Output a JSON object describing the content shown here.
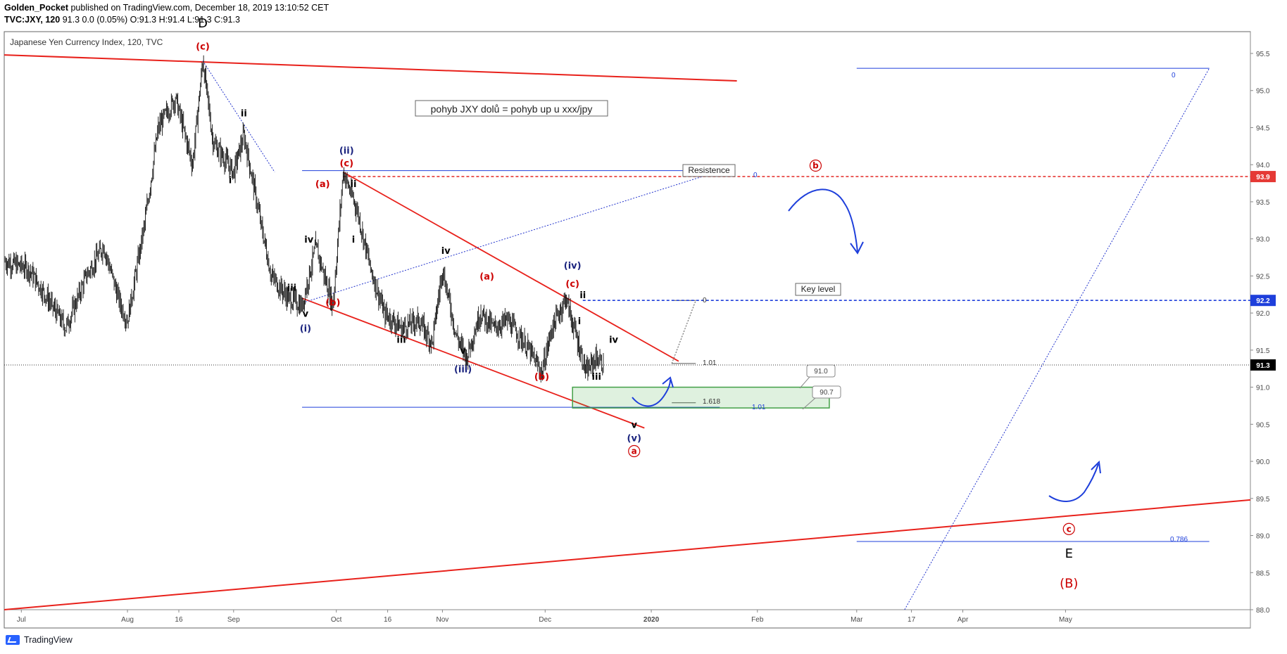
{
  "header": {
    "author": "Golden_Pocket",
    "published": " published on TradingView.com, December 18, 2019 13:10:52 CET",
    "symbol": "TVC:JXY, 120",
    "ohlc": "  91.3  0.0 (0.05%)  O:91.3  H:91.4  L:91.3  C:91.3"
  },
  "footer": {
    "brand": "TradingView"
  },
  "chart_data": {
    "type": "candlestick",
    "title": "Japanese Yen Currency Index, 120, TVC",
    "x_ticks": [
      "Jul",
      "Aug",
      "16",
      "Sep",
      "Oct",
      "16",
      "Nov",
      "Dec",
      "2020",
      "Feb",
      "Mar",
      "17",
      "Apr",
      "May"
    ],
    "x_tick_dates": [
      "2019-07-01",
      "2019-08-01",
      "2019-08-16",
      "2019-09-01",
      "2019-10-01",
      "2019-10-16",
      "2019-11-01",
      "2019-12-01",
      "2020-01-01",
      "2020-02-01",
      "2020-03-01",
      "2020-03-17",
      "2020-04-01",
      "2020-05-01"
    ],
    "y_ticks": [
      "88.0",
      "88.5",
      "89.0",
      "89.5",
      "90.0",
      "90.5",
      "91.0",
      "91.5",
      "92.0",
      "92.5",
      "93.0",
      "93.5",
      "94.0",
      "94.5",
      "95.0",
      "95.5"
    ],
    "y_range": [
      88.0,
      95.7
    ],
    "x_range": [
      "2019-06-26",
      "2020-06-24"
    ],
    "last_price": 91.3,
    "price_path": [
      [
        "2019-06-26",
        92.7
      ],
      [
        "2019-07-03",
        92.6
      ],
      [
        "2019-07-10",
        92.1
      ],
      [
        "2019-07-14",
        91.8
      ],
      [
        "2019-07-20",
        92.5
      ],
      [
        "2019-07-25",
        92.9
      ],
      [
        "2019-07-30",
        92.1
      ],
      [
        "2019-08-01",
        91.9
      ],
      [
        "2019-08-06",
        93.2
      ],
      [
        "2019-08-10",
        94.5
      ],
      [
        "2019-08-15",
        94.9
      ],
      [
        "2019-08-20",
        94.0
      ],
      [
        "2019-08-23",
        95.4
      ],
      [
        "2019-08-26",
        94.3
      ],
      [
        "2019-09-01",
        93.9
      ],
      [
        "2019-09-04",
        94.4
      ],
      [
        "2019-09-09",
        93.2
      ],
      [
        "2019-09-12",
        92.5
      ],
      [
        "2019-09-17",
        92.2
      ],
      [
        "2019-09-21",
        92.1
      ],
      [
        "2019-09-25",
        92.9
      ],
      [
        "2019-09-30",
        92.1
      ],
      [
        "2019-10-03",
        93.9
      ],
      [
        "2019-10-07",
        93.4
      ],
      [
        "2019-10-11",
        92.6
      ],
      [
        "2019-10-15",
        92.0
      ],
      [
        "2019-10-20",
        91.8
      ],
      [
        "2019-10-25",
        91.9
      ],
      [
        "2019-10-29",
        91.6
      ],
      [
        "2019-11-01",
        92.6
      ],
      [
        "2019-11-05",
        91.7
      ],
      [
        "2019-11-08",
        91.4
      ],
      [
        "2019-11-12",
        92.0
      ],
      [
        "2019-11-16",
        91.8
      ],
      [
        "2019-11-20",
        91.9
      ],
      [
        "2019-11-25",
        91.6
      ],
      [
        "2019-11-30",
        91.2
      ],
      [
        "2019-12-03",
        91.8
      ],
      [
        "2019-12-07",
        92.2
      ],
      [
        "2019-12-10",
        91.7
      ],
      [
        "2019-12-13",
        91.2
      ],
      [
        "2019-12-16",
        91.4
      ],
      [
        "2019-12-18",
        91.3
      ]
    ],
    "waves": [
      {
        "text": "D",
        "date": "2019-08-23",
        "price": 95.85,
        "color": "#000000"
      },
      {
        "text": "(c)",
        "date": "2019-08-23",
        "price": 95.55,
        "color": "#cc0000"
      },
      {
        "text": "ii",
        "date": "2019-09-04",
        "price": 94.65,
        "color": "#000000"
      },
      {
        "text": "i",
        "date": "2019-08-31",
        "price": 93.75,
        "color": "#000000"
      },
      {
        "text": "iv",
        "date": "2019-09-23",
        "price": 92.95,
        "color": "#000000"
      },
      {
        "text": "iii",
        "date": "2019-09-18",
        "price": 92.3,
        "color": "#000000"
      },
      {
        "text": "v",
        "date": "2019-09-22",
        "price": 91.95,
        "color": "#000000"
      },
      {
        "text": "(i)",
        "date": "2019-09-22",
        "price": 91.75,
        "color": "#1a237e"
      },
      {
        "text": "(a)",
        "date": "2019-09-27",
        "price": 93.7,
        "color": "#cc0000"
      },
      {
        "text": "(b)",
        "date": "2019-09-30",
        "price": 92.1,
        "color": "#cc0000"
      },
      {
        "text": "(ii)",
        "date": "2019-10-04",
        "price": 94.15,
        "color": "#1a237e"
      },
      {
        "text": "(c)",
        "date": "2019-10-04",
        "price": 93.98,
        "color": "#cc0000"
      },
      {
        "text": "ii",
        "date": "2019-10-06",
        "price": 93.7,
        "color": "#000000"
      },
      {
        "text": "i",
        "date": "2019-10-06",
        "price": 92.95,
        "color": "#000000"
      },
      {
        "text": "iii",
        "date": "2019-10-20",
        "price": 91.6,
        "color": "#000000"
      },
      {
        "text": "iv",
        "date": "2019-11-02",
        "price": 92.8,
        "color": "#000000"
      },
      {
        "text": "v",
        "date": "2019-11-07",
        "price": 91.45,
        "color": "#000000"
      },
      {
        "text": "(iii)",
        "date": "2019-11-07",
        "price": 91.2,
        "color": "#1a237e"
      },
      {
        "text": "(a)",
        "date": "2019-11-14",
        "price": 92.45,
        "color": "#cc0000"
      },
      {
        "text": "(b)",
        "date": "2019-11-30",
        "price": 91.1,
        "color": "#cc0000"
      },
      {
        "text": "(iv)",
        "date": "2019-12-09",
        "price": 92.6,
        "color": "#1a237e"
      },
      {
        "text": "(c)",
        "date": "2019-12-09",
        "price": 92.35,
        "color": "#cc0000"
      },
      {
        "text": "ii",
        "date": "2019-12-12",
        "price": 92.2,
        "color": "#000000"
      },
      {
        "text": "i",
        "date": "2019-12-11",
        "price": 91.85,
        "color": "#000000"
      },
      {
        "text": "iv",
        "date": "2019-12-21",
        "price": 91.6,
        "color": "#000000"
      },
      {
        "text": "iii",
        "date": "2019-12-16",
        "price": 91.1,
        "color": "#000000"
      },
      {
        "text": "v",
        "date": "2019-12-27",
        "price": 90.45,
        "color": "#000000"
      },
      {
        "text": "(v)",
        "date": "2019-12-27",
        "price": 90.27,
        "color": "#1a237e"
      },
      {
        "text": "(B)",
        "date": "2020-05-02",
        "price": 88.3,
        "color": "#cc0000"
      },
      {
        "text": "E",
        "date": "2020-05-02",
        "price": 88.7,
        "color": "#000000"
      }
    ],
    "circled_labels": [
      {
        "text": "a",
        "date": "2019-12-27",
        "price": 90.1
      },
      {
        "text": "b",
        "date": "2020-02-18",
        "price": 93.95
      },
      {
        "text": "c",
        "date": "2020-05-02",
        "price": 89.05
      }
    ],
    "annotations": {
      "note": "pohyb JXY dolů = pohyb up u xxx/jpy",
      "resistance": "Resistence",
      "key_level": "Key level",
      "fib_0_top": "0",
      "fib_0_mid": "0",
      "fib_0_small": "0",
      "fib_1_01_a": "1.01",
      "fib_1_01_b": "1.01",
      "fib_1_618": "1.618",
      "fib_0_786": "0.786",
      "callout_91": "91.0",
      "callout_90_7": "90.7"
    },
    "price_tags": [
      {
        "value": "93.9",
        "price": 93.84,
        "color": "#e53935"
      },
      {
        "value": "92.2",
        "price": 92.17,
        "color": "#1e3fdb"
      },
      {
        "value": "91.3",
        "price": 91.3,
        "color": "#000000"
      }
    ],
    "green_zone": {
      "date_from": "2019-12-09",
      "date_to": "2020-02-22",
      "price_from": 90.72,
      "price_to": 91.0
    }
  }
}
